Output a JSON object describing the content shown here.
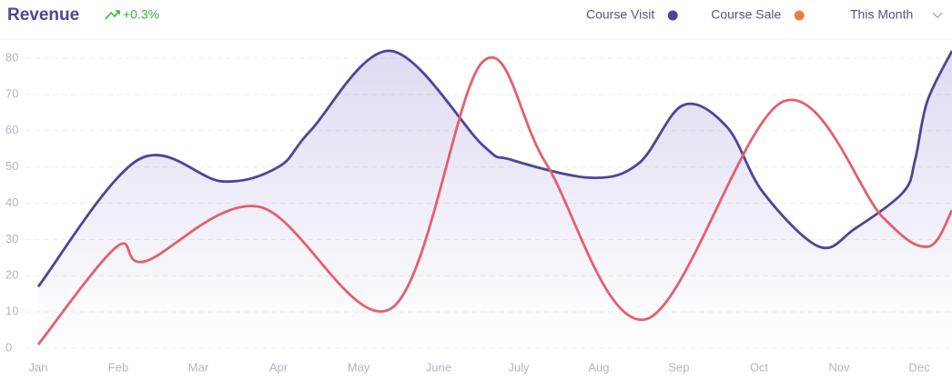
{
  "chart_data": {
    "type": "line",
    "title": "Revenue",
    "change": "+0.3%",
    "period": "This Month",
    "xlim": [
      0,
      11.41
    ],
    "xticks": [
      {
        "value": 0,
        "label": "Jan"
      },
      {
        "value": 1,
        "label": "Feb"
      },
      {
        "value": 2,
        "label": "Mar"
      },
      {
        "value": 3,
        "label": "Apr"
      },
      {
        "value": 4,
        "label": "May"
      },
      {
        "value": 5,
        "label": "June"
      },
      {
        "value": 6,
        "label": "July"
      },
      {
        "value": 7,
        "label": "Aug"
      },
      {
        "value": 8,
        "label": "Sep"
      },
      {
        "value": 9,
        "label": "Oct"
      },
      {
        "value": 10,
        "label": "Nov"
      },
      {
        "value": 11,
        "label": "Dec"
      }
    ],
    "ylim": [
      0,
      85
    ],
    "yticks": [
      0,
      10,
      20,
      30,
      40,
      50,
      60,
      70,
      80
    ],
    "grid": true,
    "series": [
      {
        "name": "Course Visit",
        "color": "#4f4398",
        "marker_color": "#4f4398",
        "area": true,
        "x": [
          0,
          1.25,
          2.3,
          3,
          3.4,
          4.4,
          5.55,
          5.9,
          6.9,
          7.5,
          8.05,
          8.6,
          9.05,
          9.75,
          10.2,
          10.8,
          10.95,
          11.1,
          11.41
        ],
        "values": [
          17,
          52,
          46,
          50,
          60,
          82,
          56,
          52,
          47,
          51,
          67,
          61,
          43,
          28,
          33,
          43,
          52,
          68,
          82
        ]
      },
      {
        "name": "Course Sale",
        "color": "#e2606c",
        "marker_color": "#f07d45",
        "area": false,
        "x": [
          0,
          0.98,
          1.34,
          2.76,
          4.41,
          5.55,
          6.34,
          7.59,
          9.3,
          10.55,
          11.11,
          11.41
        ],
        "values": [
          1,
          28,
          24,
          39,
          11,
          79,
          51,
          8,
          68,
          36,
          28,
          38
        ]
      }
    ]
  }
}
